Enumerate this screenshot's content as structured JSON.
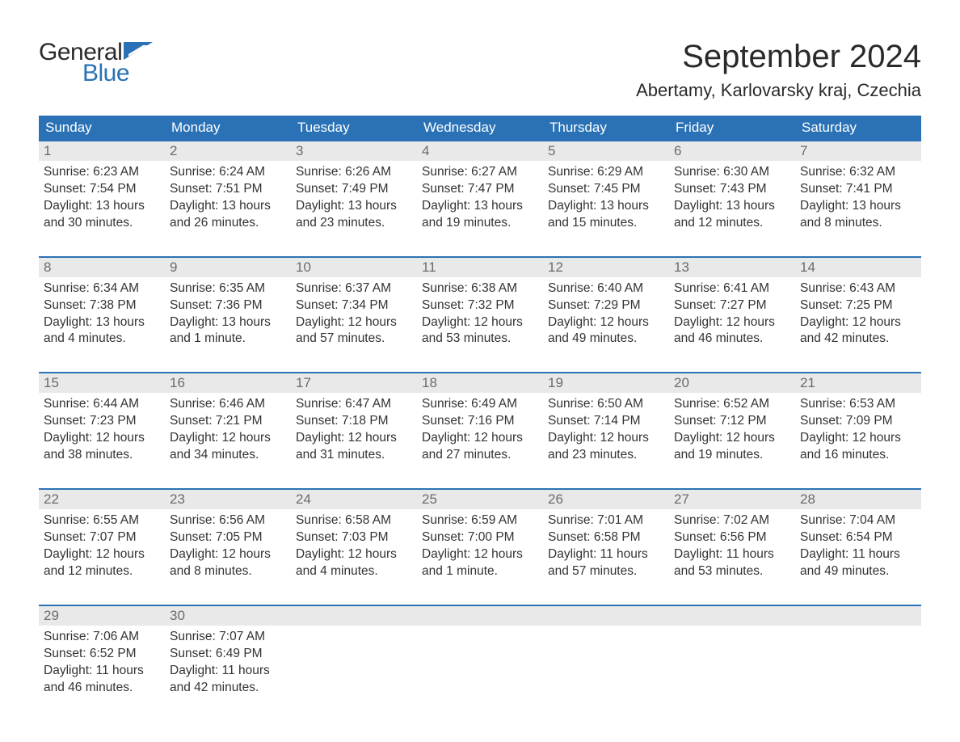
{
  "brand": {
    "word1": "General",
    "word2": "Blue",
    "flag_color": "#2a72b5"
  },
  "title": "September 2024",
  "location": "Abertamy, Karlovarsky kraj, Czechia",
  "colors": {
    "header_bg": "#2a72b5",
    "header_text": "#ffffff",
    "daynum_bg": "#e9e9e9",
    "daynum_text": "#6b6b6b",
    "body_text": "#333333",
    "rule": "#2a72b5",
    "page_bg": "#ffffff"
  },
  "fonts": {
    "title_size_pt": 30,
    "location_size_pt": 17,
    "weekday_size_pt": 13,
    "body_size_pt": 12
  },
  "weekdays": [
    "Sunday",
    "Monday",
    "Tuesday",
    "Wednesday",
    "Thursday",
    "Friday",
    "Saturday"
  ],
  "weeks": [
    [
      {
        "n": "1",
        "sunrise": "Sunrise: 6:23 AM",
        "sunset": "Sunset: 7:54 PM",
        "d1": "Daylight: 13 hours",
        "d2": "and 30 minutes."
      },
      {
        "n": "2",
        "sunrise": "Sunrise: 6:24 AM",
        "sunset": "Sunset: 7:51 PM",
        "d1": "Daylight: 13 hours",
        "d2": "and 26 minutes."
      },
      {
        "n": "3",
        "sunrise": "Sunrise: 6:26 AM",
        "sunset": "Sunset: 7:49 PM",
        "d1": "Daylight: 13 hours",
        "d2": "and 23 minutes."
      },
      {
        "n": "4",
        "sunrise": "Sunrise: 6:27 AM",
        "sunset": "Sunset: 7:47 PM",
        "d1": "Daylight: 13 hours",
        "d2": "and 19 minutes."
      },
      {
        "n": "5",
        "sunrise": "Sunrise: 6:29 AM",
        "sunset": "Sunset: 7:45 PM",
        "d1": "Daylight: 13 hours",
        "d2": "and 15 minutes."
      },
      {
        "n": "6",
        "sunrise": "Sunrise: 6:30 AM",
        "sunset": "Sunset: 7:43 PM",
        "d1": "Daylight: 13 hours",
        "d2": "and 12 minutes."
      },
      {
        "n": "7",
        "sunrise": "Sunrise: 6:32 AM",
        "sunset": "Sunset: 7:41 PM",
        "d1": "Daylight: 13 hours",
        "d2": "and 8 minutes."
      }
    ],
    [
      {
        "n": "8",
        "sunrise": "Sunrise: 6:34 AM",
        "sunset": "Sunset: 7:38 PM",
        "d1": "Daylight: 13 hours",
        "d2": "and 4 minutes."
      },
      {
        "n": "9",
        "sunrise": "Sunrise: 6:35 AM",
        "sunset": "Sunset: 7:36 PM",
        "d1": "Daylight: 13 hours",
        "d2": "and 1 minute."
      },
      {
        "n": "10",
        "sunrise": "Sunrise: 6:37 AM",
        "sunset": "Sunset: 7:34 PM",
        "d1": "Daylight: 12 hours",
        "d2": "and 57 minutes."
      },
      {
        "n": "11",
        "sunrise": "Sunrise: 6:38 AM",
        "sunset": "Sunset: 7:32 PM",
        "d1": "Daylight: 12 hours",
        "d2": "and 53 minutes."
      },
      {
        "n": "12",
        "sunrise": "Sunrise: 6:40 AM",
        "sunset": "Sunset: 7:29 PM",
        "d1": "Daylight: 12 hours",
        "d2": "and 49 minutes."
      },
      {
        "n": "13",
        "sunrise": "Sunrise: 6:41 AM",
        "sunset": "Sunset: 7:27 PM",
        "d1": "Daylight: 12 hours",
        "d2": "and 46 minutes."
      },
      {
        "n": "14",
        "sunrise": "Sunrise: 6:43 AM",
        "sunset": "Sunset: 7:25 PM",
        "d1": "Daylight: 12 hours",
        "d2": "and 42 minutes."
      }
    ],
    [
      {
        "n": "15",
        "sunrise": "Sunrise: 6:44 AM",
        "sunset": "Sunset: 7:23 PM",
        "d1": "Daylight: 12 hours",
        "d2": "and 38 minutes."
      },
      {
        "n": "16",
        "sunrise": "Sunrise: 6:46 AM",
        "sunset": "Sunset: 7:21 PM",
        "d1": "Daylight: 12 hours",
        "d2": "and 34 minutes."
      },
      {
        "n": "17",
        "sunrise": "Sunrise: 6:47 AM",
        "sunset": "Sunset: 7:18 PM",
        "d1": "Daylight: 12 hours",
        "d2": "and 31 minutes."
      },
      {
        "n": "18",
        "sunrise": "Sunrise: 6:49 AM",
        "sunset": "Sunset: 7:16 PM",
        "d1": "Daylight: 12 hours",
        "d2": "and 27 minutes."
      },
      {
        "n": "19",
        "sunrise": "Sunrise: 6:50 AM",
        "sunset": "Sunset: 7:14 PM",
        "d1": "Daylight: 12 hours",
        "d2": "and 23 minutes."
      },
      {
        "n": "20",
        "sunrise": "Sunrise: 6:52 AM",
        "sunset": "Sunset: 7:12 PM",
        "d1": "Daylight: 12 hours",
        "d2": "and 19 minutes."
      },
      {
        "n": "21",
        "sunrise": "Sunrise: 6:53 AM",
        "sunset": "Sunset: 7:09 PM",
        "d1": "Daylight: 12 hours",
        "d2": "and 16 minutes."
      }
    ],
    [
      {
        "n": "22",
        "sunrise": "Sunrise: 6:55 AM",
        "sunset": "Sunset: 7:07 PM",
        "d1": "Daylight: 12 hours",
        "d2": "and 12 minutes."
      },
      {
        "n": "23",
        "sunrise": "Sunrise: 6:56 AM",
        "sunset": "Sunset: 7:05 PM",
        "d1": "Daylight: 12 hours",
        "d2": "and 8 minutes."
      },
      {
        "n": "24",
        "sunrise": "Sunrise: 6:58 AM",
        "sunset": "Sunset: 7:03 PM",
        "d1": "Daylight: 12 hours",
        "d2": "and 4 minutes."
      },
      {
        "n": "25",
        "sunrise": "Sunrise: 6:59 AM",
        "sunset": "Sunset: 7:00 PM",
        "d1": "Daylight: 12 hours",
        "d2": "and 1 minute."
      },
      {
        "n": "26",
        "sunrise": "Sunrise: 7:01 AM",
        "sunset": "Sunset: 6:58 PM",
        "d1": "Daylight: 11 hours",
        "d2": "and 57 minutes."
      },
      {
        "n": "27",
        "sunrise": "Sunrise: 7:02 AM",
        "sunset": "Sunset: 6:56 PM",
        "d1": "Daylight: 11 hours",
        "d2": "and 53 minutes."
      },
      {
        "n": "28",
        "sunrise": "Sunrise: 7:04 AM",
        "sunset": "Sunset: 6:54 PM",
        "d1": "Daylight: 11 hours",
        "d2": "and 49 minutes."
      }
    ],
    [
      {
        "n": "29",
        "sunrise": "Sunrise: 7:06 AM",
        "sunset": "Sunset: 6:52 PM",
        "d1": "Daylight: 11 hours",
        "d2": "and 46 minutes."
      },
      {
        "n": "30",
        "sunrise": "Sunrise: 7:07 AM",
        "sunset": "Sunset: 6:49 PM",
        "d1": "Daylight: 11 hours",
        "d2": "and 42 minutes."
      },
      {
        "empty": true
      },
      {
        "empty": true
      },
      {
        "empty": true
      },
      {
        "empty": true
      },
      {
        "empty": true
      }
    ]
  ]
}
